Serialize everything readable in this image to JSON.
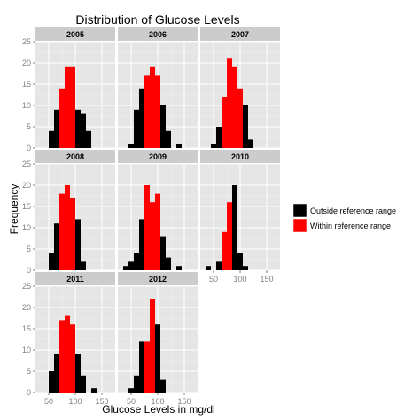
{
  "chart_data": {
    "type": "bar",
    "title": "Distribution of Glucose Levels",
    "xlabel": "Glucose Levels in mg/dl",
    "ylabel": "Frequency",
    "xlim": [
      25,
      175
    ],
    "ylim": [
      0,
      25
    ],
    "bin_width": 10,
    "x_ticks": [
      50,
      100,
      150
    ],
    "y_ticks": [
      0,
      5,
      10,
      15,
      20,
      25
    ],
    "grid": true,
    "legend_position": "right",
    "legend": [
      {
        "key": "outside",
        "label": "Outside reference range",
        "color": "#000000"
      },
      {
        "key": "within",
        "label": "Within reference range",
        "color": "#ff0000"
      }
    ],
    "panels": [
      {
        "label": "2005",
        "bins": [
          {
            "x": 55,
            "value": 4,
            "group": "outside"
          },
          {
            "x": 65,
            "value": 9,
            "group": "outside"
          },
          {
            "x": 75,
            "value": 14,
            "group": "within"
          },
          {
            "x": 85,
            "value": 19,
            "group": "within"
          },
          {
            "x": 95,
            "value": 19,
            "group": "within"
          },
          {
            "x": 105,
            "value": 9,
            "group": "outside"
          },
          {
            "x": 115,
            "value": 8,
            "group": "outside"
          },
          {
            "x": 125,
            "value": 4,
            "group": "outside"
          }
        ]
      },
      {
        "label": "2006",
        "bins": [
          {
            "x": 50,
            "value": 1,
            "group": "outside"
          },
          {
            "x": 60,
            "value": 9,
            "group": "outside"
          },
          {
            "x": 70,
            "value": 14,
            "group": "outside"
          },
          {
            "x": 80,
            "value": 17,
            "group": "within"
          },
          {
            "x": 90,
            "value": 19,
            "group": "within"
          },
          {
            "x": 100,
            "value": 17,
            "group": "within"
          },
          {
            "x": 110,
            "value": 10,
            "group": "outside"
          },
          {
            "x": 120,
            "value": 4,
            "group": "outside"
          },
          {
            "x": 140,
            "value": 1,
            "group": "outside"
          }
        ]
      },
      {
        "label": "2007",
        "bins": [
          {
            "x": 50,
            "value": 1,
            "group": "outside"
          },
          {
            "x": 60,
            "value": 5,
            "group": "outside"
          },
          {
            "x": 70,
            "value": 12,
            "group": "within"
          },
          {
            "x": 80,
            "value": 21,
            "group": "within"
          },
          {
            "x": 90,
            "value": 19,
            "group": "within"
          },
          {
            "x": 100,
            "value": 14,
            "group": "within"
          },
          {
            "x": 110,
            "value": 10,
            "group": "outside"
          },
          {
            "x": 120,
            "value": 2,
            "group": "outside"
          }
        ]
      },
      {
        "label": "2008",
        "bins": [
          {
            "x": 55,
            "value": 4,
            "group": "outside"
          },
          {
            "x": 65,
            "value": 11,
            "group": "outside"
          },
          {
            "x": 75,
            "value": 18,
            "group": "within"
          },
          {
            "x": 85,
            "value": 20,
            "group": "within"
          },
          {
            "x": 95,
            "value": 17,
            "group": "within"
          },
          {
            "x": 105,
            "value": 12,
            "group": "outside"
          },
          {
            "x": 115,
            "value": 2,
            "group": "outside"
          }
        ]
      },
      {
        "label": "2009",
        "bins": [
          {
            "x": 40,
            "value": 1,
            "group": "outside"
          },
          {
            "x": 50,
            "value": 2,
            "group": "outside"
          },
          {
            "x": 60,
            "value": 4,
            "group": "outside"
          },
          {
            "x": 70,
            "value": 12,
            "group": "outside"
          },
          {
            "x": 80,
            "value": 20,
            "group": "within"
          },
          {
            "x": 90,
            "value": 16,
            "group": "within"
          },
          {
            "x": 100,
            "value": 18,
            "group": "within"
          },
          {
            "x": 110,
            "value": 8,
            "group": "outside"
          },
          {
            "x": 120,
            "value": 3,
            "group": "outside"
          },
          {
            "x": 140,
            "value": 1,
            "group": "outside"
          }
        ]
      },
      {
        "label": "2010",
        "bins": [
          {
            "x": 40,
            "value": 1,
            "group": "outside"
          },
          {
            "x": 60,
            "value": 2,
            "group": "outside"
          },
          {
            "x": 70,
            "value": 9,
            "group": "within"
          },
          {
            "x": 80,
            "value": 16,
            "group": "within"
          },
          {
            "x": 90,
            "value": 20,
            "group": "outside"
          },
          {
            "x": 100,
            "value": 4,
            "group": "outside"
          },
          {
            "x": 110,
            "value": 1,
            "group": "outside"
          }
        ]
      },
      {
        "label": "2011",
        "bins": [
          {
            "x": 55,
            "value": 5,
            "group": "outside"
          },
          {
            "x": 65,
            "value": 9,
            "group": "outside"
          },
          {
            "x": 75,
            "value": 17,
            "group": "within"
          },
          {
            "x": 85,
            "value": 18,
            "group": "within"
          },
          {
            "x": 95,
            "value": 16,
            "group": "within"
          },
          {
            "x": 105,
            "value": 9,
            "group": "outside"
          },
          {
            "x": 115,
            "value": 4,
            "group": "outside"
          },
          {
            "x": 135,
            "value": 1,
            "group": "outside"
          }
        ]
      },
      {
        "label": "2012",
        "bins": [
          {
            "x": 50,
            "value": 1,
            "group": "outside"
          },
          {
            "x": 60,
            "value": 4,
            "group": "outside"
          },
          {
            "x": 70,
            "value": 12,
            "group": "outside"
          },
          {
            "x": 80,
            "value": 12,
            "group": "within"
          },
          {
            "x": 90,
            "value": 22,
            "group": "within"
          },
          {
            "x": 100,
            "value": 16,
            "group": "outside"
          },
          {
            "x": 110,
            "value": 3,
            "group": "outside"
          }
        ]
      }
    ]
  }
}
